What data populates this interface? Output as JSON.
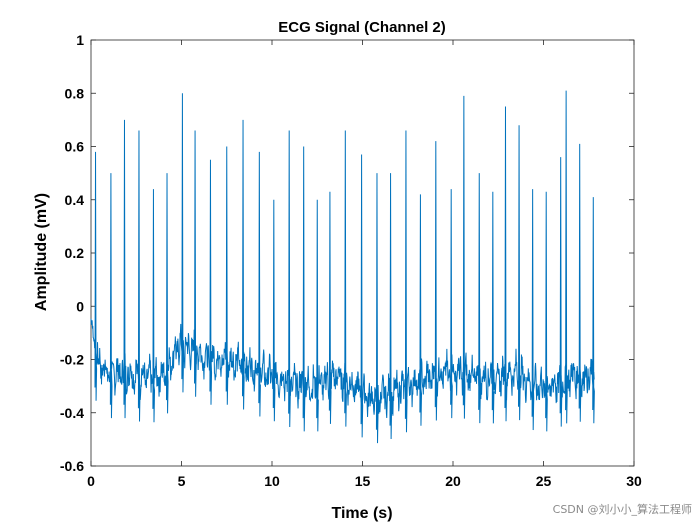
{
  "chart_data": {
    "type": "line",
    "title": "ECG Signal (Channel 2)",
    "xlabel": "Time (s)",
    "ylabel": "Amplitude (mV)",
    "xlim": [
      0,
      30
    ],
    "ylim": [
      -0.6,
      1
    ],
    "x_ticks": [
      0,
      5,
      10,
      15,
      20,
      25,
      30
    ],
    "y_ticks": [
      -0.6,
      -0.4,
      -0.2,
      0,
      0.2,
      0.4,
      0.6,
      0.8,
      1
    ],
    "x_tick_labels": [
      "0",
      "5",
      "10",
      "15",
      "20",
      "25",
      "30"
    ],
    "y_tick_labels": [
      "-0.6",
      "-0.4",
      "-0.2",
      "0",
      "0.2",
      "0.4",
      "0.6",
      "0.8",
      "1"
    ],
    "grid": false,
    "line_color": "#0072BD",
    "series": [
      {
        "duration_s": 27.8,
        "start_value": -0.05,
        "baseline_points": [
          [
            0,
            -0.15
          ],
          [
            0.5,
            -0.22
          ],
          [
            1.0,
            -0.25
          ],
          [
            2.0,
            -0.25
          ],
          [
            3.0,
            -0.27
          ],
          [
            4.0,
            -0.26
          ],
          [
            4.8,
            -0.15
          ],
          [
            5.5,
            -0.16
          ],
          [
            6.5,
            -0.2
          ],
          [
            7.5,
            -0.2
          ],
          [
            8.5,
            -0.22
          ],
          [
            9.5,
            -0.25
          ],
          [
            10.5,
            -0.27
          ],
          [
            11.5,
            -0.3
          ],
          [
            12.5,
            -0.3
          ],
          [
            13.5,
            -0.26
          ],
          [
            14.5,
            -0.3
          ],
          [
            15.5,
            -0.35
          ],
          [
            16.5,
            -0.33
          ],
          [
            17.5,
            -0.3
          ],
          [
            18.5,
            -0.27
          ],
          [
            19.5,
            -0.25
          ],
          [
            20.5,
            -0.25
          ],
          [
            21.5,
            -0.27
          ],
          [
            22.5,
            -0.27
          ],
          [
            23.5,
            -0.25
          ],
          [
            24.5,
            -0.3
          ],
          [
            25.5,
            -0.3
          ],
          [
            26.5,
            -0.26
          ],
          [
            27.8,
            -0.27
          ]
        ],
        "r_peaks": [
          [
            0.25,
            0.58
          ],
          [
            1.1,
            0.5
          ],
          [
            1.85,
            0.7
          ],
          [
            2.65,
            0.66
          ],
          [
            3.45,
            0.44
          ],
          [
            4.2,
            0.5
          ],
          [
            5.05,
            0.8
          ],
          [
            5.75,
            0.66
          ],
          [
            6.6,
            0.55
          ],
          [
            7.5,
            0.6
          ],
          [
            8.4,
            0.7
          ],
          [
            9.3,
            0.58
          ],
          [
            10.1,
            0.4
          ],
          [
            10.95,
            0.66
          ],
          [
            11.75,
            0.6
          ],
          [
            12.5,
            0.4
          ],
          [
            13.2,
            0.43
          ],
          [
            14.05,
            0.66
          ],
          [
            14.95,
            0.57
          ],
          [
            15.8,
            0.5
          ],
          [
            16.55,
            0.5
          ],
          [
            17.4,
            0.66
          ],
          [
            18.2,
            0.42
          ],
          [
            19.05,
            0.62
          ],
          [
            19.9,
            0.44
          ],
          [
            20.6,
            0.79
          ],
          [
            21.45,
            0.5
          ],
          [
            22.2,
            0.43
          ],
          [
            22.9,
            0.75
          ],
          [
            23.65,
            0.68
          ],
          [
            24.4,
            0.44
          ],
          [
            25.15,
            0.43
          ],
          [
            25.95,
            0.56
          ],
          [
            26.25,
            0.81
          ],
          [
            27.0,
            0.61
          ],
          [
            27.75,
            0.41
          ]
        ]
      }
    ]
  },
  "watermark": "CSDN @刘小小_算法工程师"
}
